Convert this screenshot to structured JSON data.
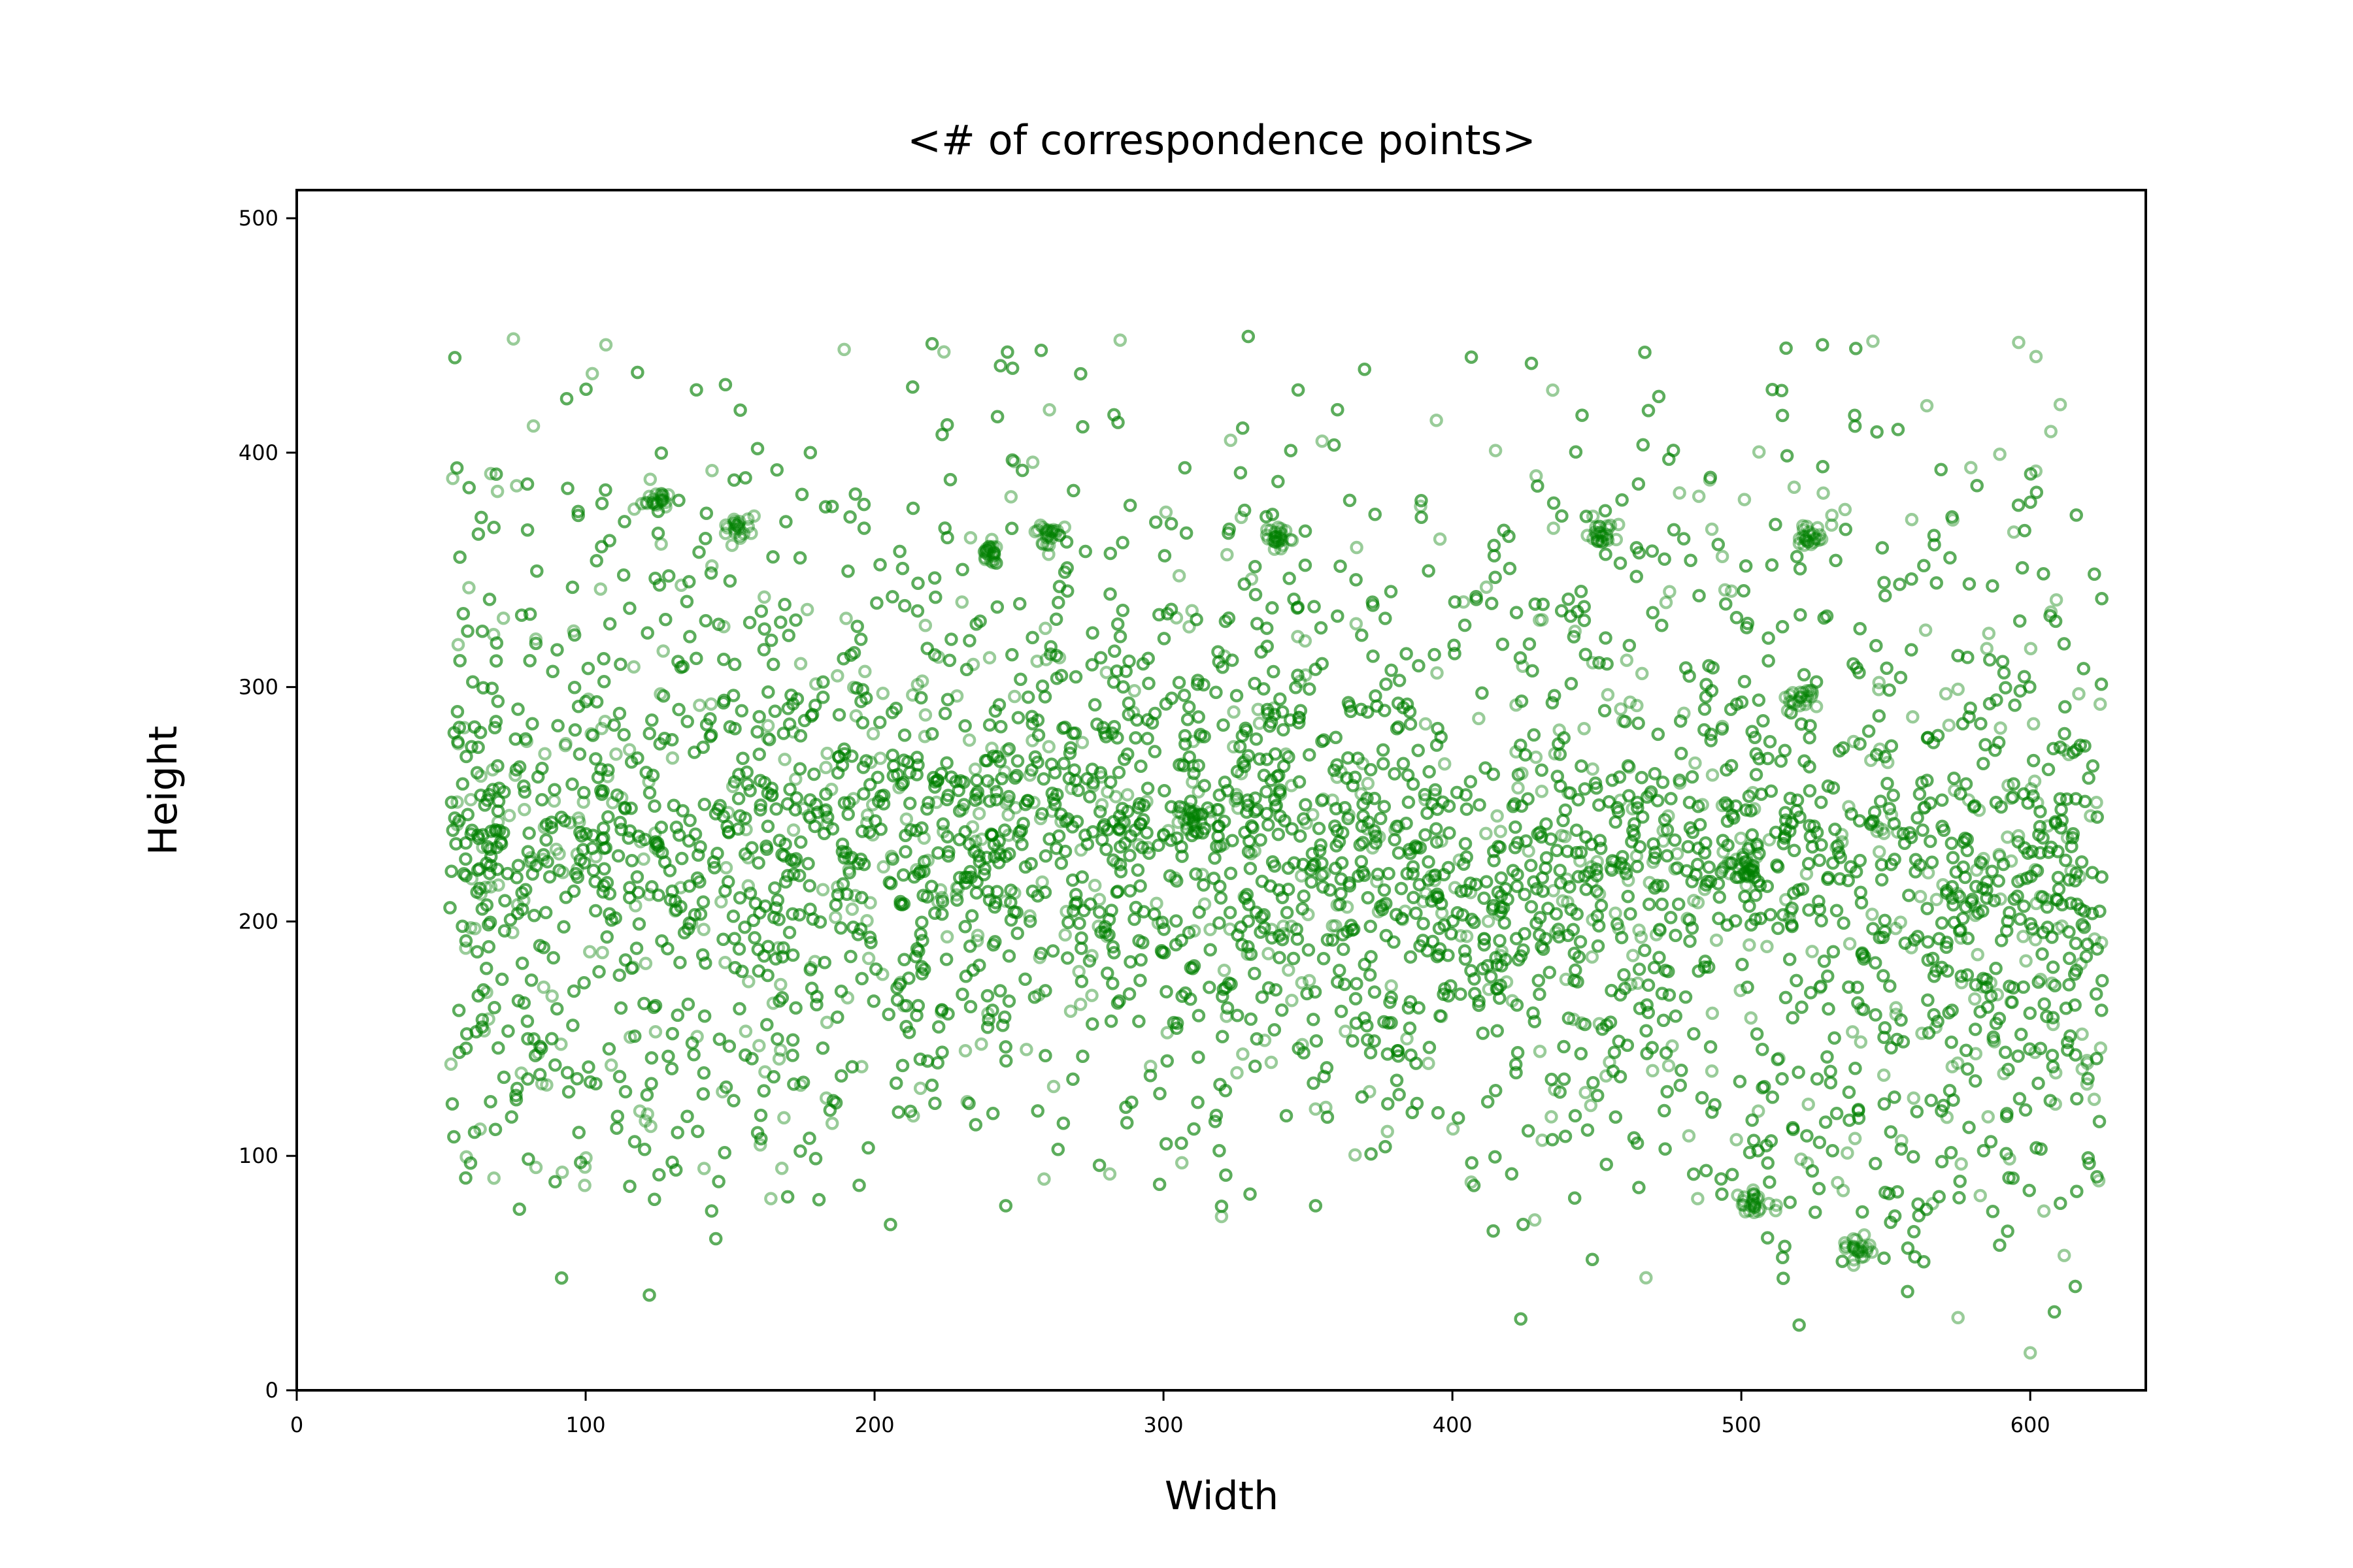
{
  "chart_data": {
    "type": "scatter",
    "title": "<# of correspondence points>",
    "xlabel": "Width",
    "ylabel": "Height",
    "xlim": [
      0,
      640
    ],
    "ylim": [
      0,
      512
    ],
    "xticks": [
      0,
      100,
      200,
      300,
      400,
      500,
      600
    ],
    "yticks": [
      0,
      100,
      200,
      300,
      400,
      500
    ],
    "grid": false,
    "legend": "none",
    "marker": "hollow-circle",
    "color": "#008000",
    "point_count_estimate": 6000,
    "x_data_range": [
      53,
      625
    ],
    "y_data_range": [
      15,
      450
    ],
    "density_ridge": [
      {
        "x": 80,
        "y": 235
      },
      {
        "x": 150,
        "y": 235
      },
      {
        "x": 250,
        "y": 248
      },
      {
        "x": 300,
        "y": 245
      },
      {
        "x": 350,
        "y": 240
      },
      {
        "x": 400,
        "y": 220
      },
      {
        "x": 500,
        "y": 222
      },
      {
        "x": 600,
        "y": 215
      }
    ],
    "secondary_band": [
      {
        "x": 80,
        "y": 140
      },
      {
        "x": 150,
        "y": 150
      },
      {
        "x": 250,
        "y": 175
      },
      {
        "x": 350,
        "y": 165
      },
      {
        "x": 450,
        "y": 140
      },
      {
        "x": 500,
        "y": 120
      },
      {
        "x": 550,
        "y": 100
      },
      {
        "x": 600,
        "y": 130
      }
    ],
    "dense_clusters": [
      {
        "x": 152,
        "y": 368
      },
      {
        "x": 260,
        "y": 366
      },
      {
        "x": 340,
        "y": 364
      },
      {
        "x": 452,
        "y": 365
      },
      {
        "x": 240,
        "y": 358
      },
      {
        "x": 124,
        "y": 380
      },
      {
        "x": 525,
        "y": 364
      },
      {
        "x": 520,
        "y": 295
      },
      {
        "x": 540,
        "y": 60
      },
      {
        "x": 505,
        "y": 80
      },
      {
        "x": 310,
        "y": 245
      },
      {
        "x": 500,
        "y": 222
      }
    ],
    "outliers": [
      {
        "x": 600,
        "y": 16
      },
      {
        "x": 575,
        "y": 31
      },
      {
        "x": 467,
        "y": 48
      },
      {
        "x": 107,
        "y": 446
      },
      {
        "x": 285,
        "y": 448
      },
      {
        "x": 54,
        "y": 389
      },
      {
        "x": 602,
        "y": 441
      },
      {
        "x": 224,
        "y": 443
      }
    ]
  }
}
